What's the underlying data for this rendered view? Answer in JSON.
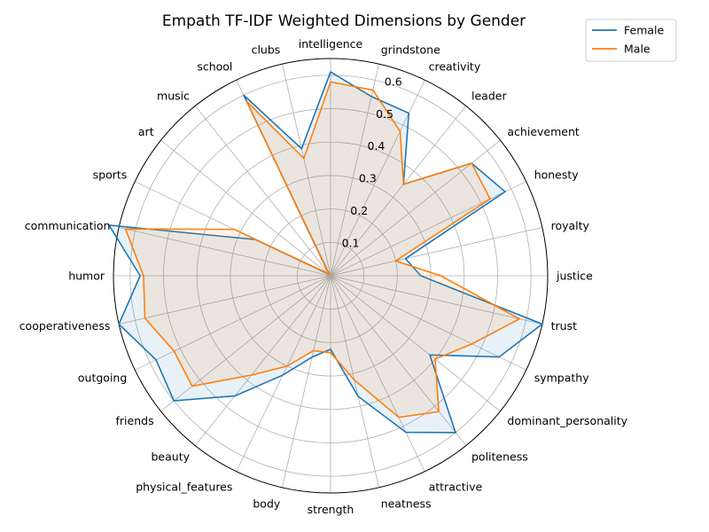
{
  "chart_data": {
    "type": "radar",
    "title": "Empath TF-IDF Weighted Dimensions by Gender",
    "legend_position": "top-right",
    "grid": true,
    "rlim": [
      0,
      0.65
    ],
    "rticks": [
      0.1,
      0.2,
      0.3,
      0.4,
      0.5,
      0.6
    ],
    "rtick_labels": [
      "0.1",
      "0.2",
      "0.3",
      "0.4",
      "0.5",
      "0.6"
    ],
    "categories": [
      "justice",
      "royalty",
      "honesty",
      "achievement",
      "leader",
      "creativity",
      "grindstone",
      "intelligence",
      "clubs",
      "school",
      "music",
      "art",
      "sports",
      "communication",
      "humor",
      "cooperativeness",
      "outgoing",
      "friends",
      "beauty",
      "physical_features",
      "body",
      "strength",
      "neatness",
      "attractive",
      "politeness",
      "dominant_personality",
      "sympathy",
      "trust"
    ],
    "series": [
      {
        "name": "Female",
        "color": "#1f77b4",
        "fill": "#1f77b4",
        "values": [
          0.27,
          0.23,
          0.58,
          0.54,
          0.35,
          0.54,
          0.55,
          0.61,
          0.39,
          0.6,
          0.01,
          0.01,
          0.25,
          0.68,
          0.57,
          0.65,
          0.58,
          0.6,
          0.46,
          0.33,
          0.25,
          0.22,
          0.37,
          0.52,
          0.6,
          0.38,
          0.56,
          0.65
        ]
      },
      {
        "name": "Male",
        "color": "#ff7f0e",
        "fill": "#ff7f0e",
        "values": [
          0.33,
          0.2,
          0.53,
          0.54,
          0.35,
          0.48,
          0.57,
          0.58,
          0.36,
          0.58,
          0.01,
          0.01,
          0.32,
          0.63,
          0.56,
          0.57,
          0.52,
          0.53,
          0.38,
          0.3,
          0.23,
          0.23,
          0.32,
          0.47,
          0.52,
          0.4,
          0.47,
          0.58
        ]
      }
    ]
  }
}
